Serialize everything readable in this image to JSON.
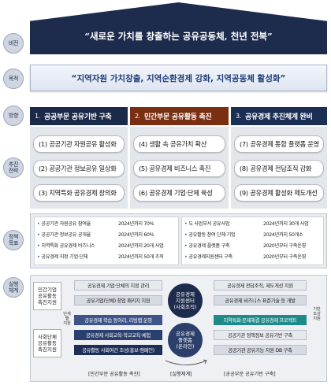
{
  "rows": {
    "vision": "비전",
    "goal": "목적",
    "direction": "방향",
    "strategy": "추진\n전략",
    "policy": "정책\n목표",
    "implementation": "실행\n체계"
  },
  "vision_text": "“새로운 가치를 창출하는 공유공동체, 천년 전북”",
  "goal_text": "“지역자원 가치창출, 지역순환경제 강화, 지역공동체 활성화”",
  "directions": [
    {
      "num": "1.",
      "title": "공공부문 공유기반 구축",
      "color": "#1c2a4a"
    },
    {
      "num": "2.",
      "title": "민간부문 공유활동 촉진",
      "color": "#7a2f12"
    },
    {
      "num": "3.",
      "title": "공유경제 추진체계 완비",
      "color": "#1b2f55"
    }
  ],
  "strategies": [
    [
      "(1) 공공기관 자원공유 활성화",
      "(2) 공공기관 정보공유 일상화",
      "(3) 지역특화 공유경제 창의화"
    ],
    [
      "(4) 생활 속 공유가치 확산",
      "(5) 공유경제 비즈니스 촉진",
      "(6) 공유경제 기업·단체 육성"
    ],
    [
      "(7) 공유경제 통합 플랫폼 운영",
      "(8) 공유경제 전담조직 강화",
      "(9) 공유경제 활성화 제도개선"
    ]
  ],
  "policy_goals": {
    "left": [
      {
        "label": "공공기관 자원공유 참여율",
        "value": "2024년까지 70%"
      },
      {
        "label": "공공기관 정보공유 공개율",
        "value": "2024년까지 60%"
      },
      {
        "label": "지역특화 공유경제 비즈니스",
        "value": "2024년까지 20개 사업"
      },
      {
        "label": "공유경제 지정 기업·단체",
        "value": "2024년까지 50개 조직"
      }
    ],
    "right": [
      {
        "label": "도 사업부서 공유사업",
        "value": "2024년까지 30개 사업"
      },
      {
        "label": "공유활동 참여 단체·기업",
        "value": "2024년까지 50개소"
      },
      {
        "label": "공유경제 플랫폼 구축",
        "value": "2020년부터 구축운영"
      },
      {
        "label": "공유경제지원센터 구축",
        "value": "2020년부터 구축운영"
      }
    ]
  },
  "implementation": {
    "left_groups": [
      "민간기업\n공유활동\n촉진지원",
      "사회단체\n공유활동\n촉진지원"
    ],
    "left_mid_note": "단계별\n지원",
    "left_bars": [
      "공유경제 기업·단체의 지정 관리",
      "공유기업(단체) 창업 패키지 지원",
      "공유경제 학습 동아리, 리빙랩 운영",
      "공유경제 사회교육·학교교육·체험",
      "공유활동 사회여건 조성(홍보·캠페인)"
    ],
    "center_top": "공유경제\n지원센터\n(사회조직)",
    "center_bottom": "공유경제\n플랫폼\n(온라인)",
    "right_bars": [
      "공유경제 전담조직, 제도개선 지원",
      "공유경제 비즈니스 표준기술 등 개발",
      "지역특화·문제해결 공유경제 프로젝트",
      "공공기관 정책정보 공유기반 구축",
      "공공기관 공유기능 자원 DB 구축"
    ],
    "right_note": "기반\n조성\n지원",
    "footer": [
      "[민간부문 공유활동 촉진]",
      "[실행체계]",
      "[공공부문 공유기반 구축]"
    ]
  }
}
